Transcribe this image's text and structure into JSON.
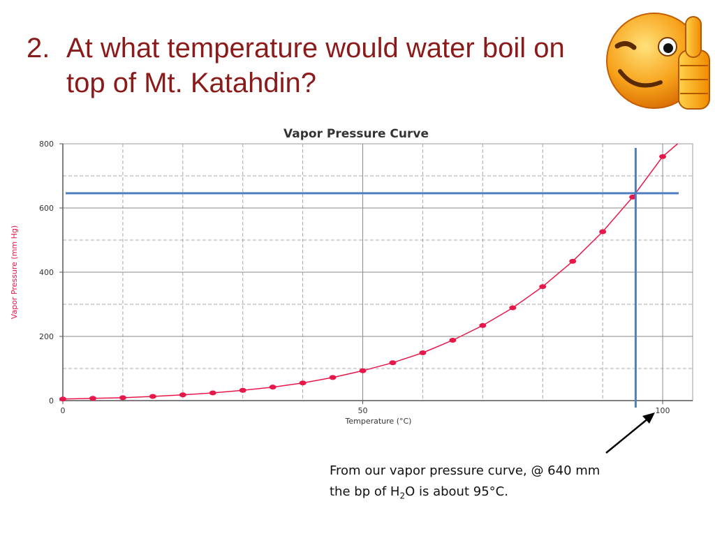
{
  "slide": {
    "number": "2.",
    "question": "At what temperature would water boil on top of Mt. Katahdin?"
  },
  "note": {
    "line1": "From our vapor pressure curve, @ 640 mm",
    "line2_pre": "the bp of H",
    "line2_sub": "2",
    "line2_post": "O is about 95°C."
  },
  "decor": {
    "emoji_icon": "winking-thumbs-up-smiley-icon",
    "arrow_icon": "arrow-pointing-to-axis-icon"
  },
  "chart_data": {
    "type": "scatter",
    "title": "Vapor Pressure Curve",
    "xlabel": "Temperature (°C)",
    "ylabel": "Vapor Pressure (mm Hg)",
    "xlim": [
      0,
      105
    ],
    "ylim": [
      0,
      800
    ],
    "xticks": [
      0,
      50,
      100
    ],
    "yticks": [
      0,
      200,
      400,
      600,
      800
    ],
    "grid": true,
    "series": [
      {
        "color": "#e8174a",
        "x": [
          0,
          5,
          10,
          15,
          20,
          25,
          30,
          35,
          40,
          45,
          50,
          55,
          60,
          65,
          70,
          75,
          80,
          85,
          90,
          95,
          100
        ],
        "y": [
          5,
          7,
          9,
          13,
          18,
          24,
          32,
          42,
          55,
          72,
          93,
          118,
          149,
          188,
          234,
          289,
          355,
          434,
          526,
          634,
          760
        ]
      }
    ],
    "reference_lines": {
      "horizontal_y": 646,
      "vertical_x": 95.5,
      "color": "#4f7fbf"
    }
  }
}
